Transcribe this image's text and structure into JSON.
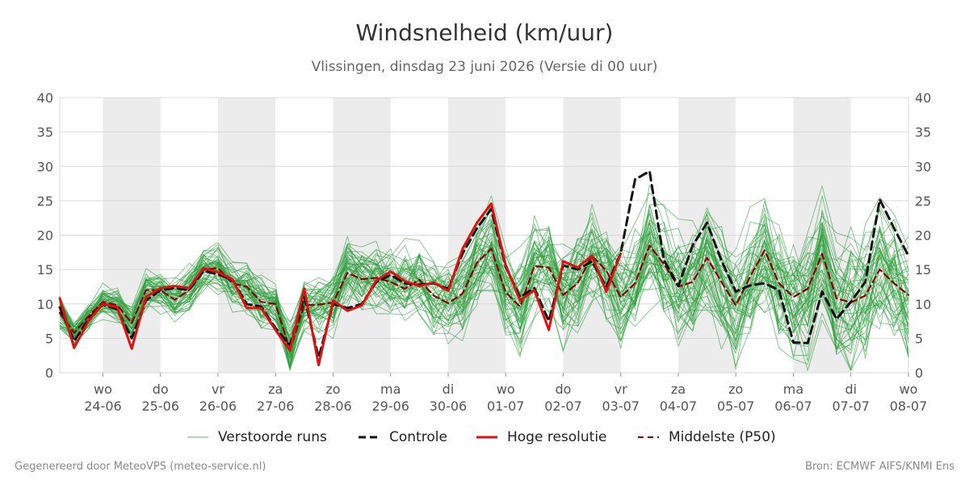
{
  "header": {
    "title": "Windsnelheid (km/uur)",
    "subtitle": "Vlissingen, dinsdag 23 juni 2026 (Versie di 00 uur)"
  },
  "footer": {
    "left": "Gegenereerd door MeteoVPS (meteo-service.nl)",
    "right": "Bron: ECMWF AIFS/KNMI Ens"
  },
  "colors": {
    "ensemble": "#2e9e3e",
    "control": "#111111",
    "hires": "#dd1111",
    "median": "#8b0000",
    "weekend_band": "#ececec",
    "grid": "#d9d9d9"
  },
  "chart_data": {
    "type": "line",
    "ylim": [
      0,
      40
    ],
    "yticks": [
      0,
      5,
      10,
      15,
      20,
      25,
      30,
      35,
      40
    ],
    "grid": true,
    "legend_position": "bottom",
    "x_range_days": [
      -0.75,
      14.0
    ],
    "day_step": 0.25,
    "shaded_day_bands": [
      [
        0,
        1
      ],
      [
        2,
        3
      ],
      [
        4,
        5
      ],
      [
        6,
        7
      ],
      [
        8,
        9
      ],
      [
        10,
        11
      ],
      [
        12,
        13
      ]
    ],
    "xtick_labels": [
      {
        "day": "wo",
        "date": "24-06"
      },
      {
        "day": "do",
        "date": "25-06"
      },
      {
        "day": "vr",
        "date": "26-06"
      },
      {
        "day": "za",
        "date": "27-06"
      },
      {
        "day": "zo",
        "date": "28-06"
      },
      {
        "day": "ma",
        "date": "29-06"
      },
      {
        "day": "di",
        "date": "30-06"
      },
      {
        "day": "wo",
        "date": "01-07"
      },
      {
        "day": "do",
        "date": "02-07"
      },
      {
        "day": "vr",
        "date": "03-07"
      },
      {
        "day": "za",
        "date": "04-07"
      },
      {
        "day": "zo",
        "date": "05-07"
      },
      {
        "day": "ma",
        "date": "06-07"
      },
      {
        "day": "di",
        "date": "07-07"
      },
      {
        "day": "wo",
        "date": "08-07"
      }
    ],
    "legend": [
      {
        "key": "ensemble",
        "label": "Verstoorde runs"
      },
      {
        "key": "control",
        "label": "Controle"
      },
      {
        "key": "hires",
        "label": "Hoge resolutie"
      },
      {
        "key": "median",
        "label": "Middelste (P50)"
      }
    ],
    "ensemble_member_count": 50,
    "series": [
      {
        "name": "Hoge resolutie",
        "key": "hires",
        "x": [
          -0.75,
          -0.5,
          -0.25,
          0,
          0.25,
          0.5,
          0.75,
          1,
          1.25,
          1.5,
          1.75,
          2,
          2.25,
          2.5,
          2.75,
          3,
          3.25,
          3.5,
          3.75,
          4,
          4.25,
          4.5,
          4.75,
          5,
          5.25,
          5.5,
          5.75,
          6,
          6.25,
          6.5,
          6.75,
          7,
          7.25,
          7.5,
          7.75,
          8,
          8.25,
          8.5,
          8.75,
          9
        ],
        "values": [
          10.8,
          3.6,
          7.5,
          10.0,
          9.5,
          3.5,
          11.0,
          12.3,
          12.6,
          12.3,
          15.2,
          14.6,
          13.6,
          9.4,
          9.4,
          6.2,
          3.2,
          12.2,
          1.1,
          10.5,
          9.0,
          9.8,
          13.4,
          14.7,
          13.3,
          12.6,
          13.1,
          11.9,
          18.0,
          21.8,
          24.6,
          15.7,
          10.5,
          12.0,
          6.2,
          16.2,
          15.3,
          17.0,
          11.8,
          17.3
        ]
      },
      {
        "name": "Controle",
        "key": "control",
        "x": [
          -0.75,
          -0.5,
          -0.25,
          0,
          0.25,
          0.5,
          0.75,
          1,
          1.25,
          1.5,
          1.75,
          2,
          2.25,
          2.5,
          2.75,
          3,
          3.25,
          3.5,
          3.75,
          4,
          4.25,
          4.5,
          4.75,
          5,
          5.25,
          5.5,
          5.75,
          6,
          6.25,
          6.5,
          6.75,
          7,
          7.25,
          7.5,
          7.75,
          8,
          8.25,
          8.5,
          8.75,
          9,
          9.25,
          9.5,
          9.75,
          10,
          10.25,
          10.5,
          10.75,
          11,
          11.25,
          11.5,
          11.75,
          12,
          12.25,
          12.5,
          12.75,
          13,
          13.25,
          13.5,
          13.75,
          14
        ],
        "values": [
          9.5,
          4.6,
          7.8,
          9.9,
          9.2,
          5.0,
          10.5,
          12.0,
          12.3,
          12.0,
          14.8,
          14.3,
          13.5,
          10.0,
          9.6,
          6.5,
          4.0,
          11.0,
          2.2,
          10.0,
          9.4,
          10.0,
          13.2,
          14.2,
          13.0,
          12.8,
          13.0,
          12.2,
          17.3,
          21.0,
          23.8,
          15.4,
          11.0,
          12.3,
          7.5,
          15.6,
          15.0,
          16.2,
          12.5,
          17.4,
          28.1,
          29.3,
          16.4,
          12.6,
          18.5,
          21.8,
          16.3,
          11.8,
          12.7,
          13.0,
          12.0,
          4.4,
          4.3,
          11.8,
          7.8,
          10.3,
          13.2,
          25.2,
          21.0,
          17.0
        ]
      },
      {
        "name": "Middelste (P50)",
        "key": "median",
        "x": [
          -0.75,
          -0.5,
          -0.25,
          0,
          0.25,
          0.5,
          0.75,
          1,
          1.25,
          1.5,
          1.75,
          2,
          2.25,
          2.5,
          2.75,
          3,
          3.25,
          3.5,
          3.75,
          4,
          4.25,
          4.5,
          4.75,
          5,
          5.25,
          5.5,
          5.75,
          6,
          6.25,
          6.5,
          6.75,
          7,
          7.25,
          7.5,
          7.75,
          8,
          8.25,
          8.5,
          8.75,
          9,
          9.25,
          9.5,
          9.75,
          10,
          10.25,
          10.5,
          10.75,
          11,
          11.25,
          11.5,
          11.75,
          12,
          12.25,
          12.5,
          12.75,
          13,
          13.25,
          13.5,
          13.75,
          14
        ],
        "values": [
          8.7,
          5.8,
          8.2,
          10.3,
          9.8,
          7.2,
          12.0,
          12.0,
          10.6,
          12.0,
          15.0,
          15.2,
          13.0,
          12.5,
          10.3,
          10.0,
          3.3,
          9.8,
          9.9,
          10.2,
          14.5,
          13.6,
          13.8,
          13.2,
          12.2,
          13.5,
          11.2,
          10.1,
          11.5,
          16.0,
          18.0,
          11.7,
          9.6,
          15.5,
          15.3,
          11.3,
          13.0,
          17.0,
          14.8,
          11.0,
          13.0,
          18.5,
          15.8,
          12.5,
          13.2,
          16.7,
          13.2,
          9.8,
          14.0,
          17.8,
          13.0,
          11.0,
          12.2,
          17.3,
          10.8,
          10.2,
          11.2,
          15.0,
          13.0,
          11.3
        ]
      }
    ]
  }
}
